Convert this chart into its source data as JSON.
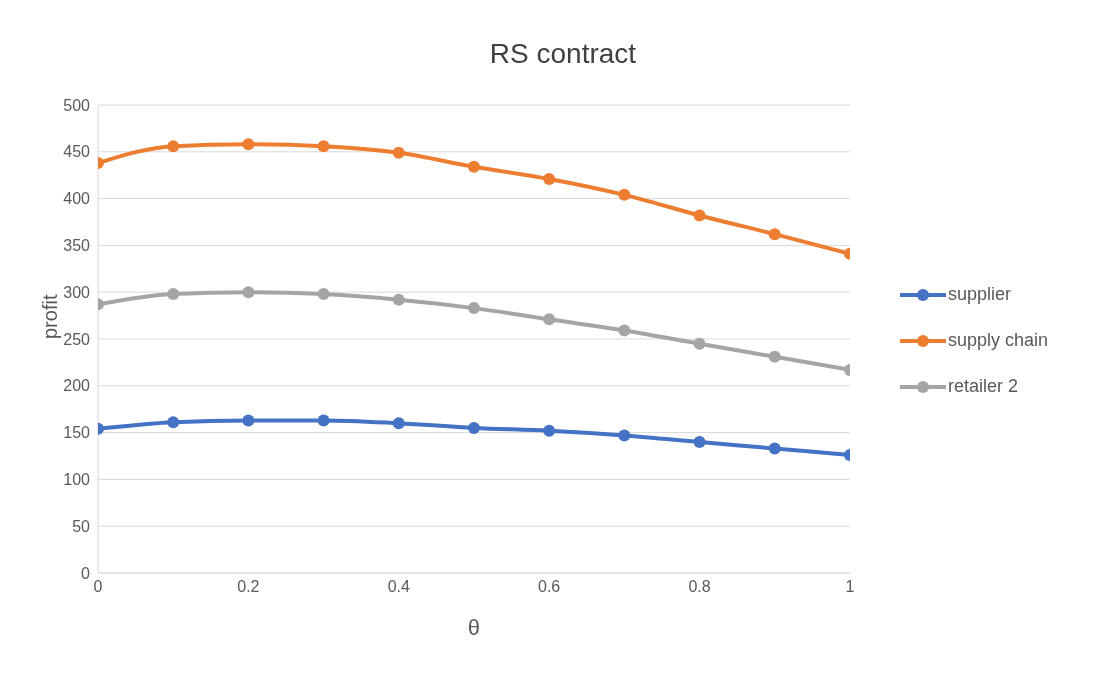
{
  "chart_data": {
    "type": "line",
    "title": "RS contract",
    "xlabel": "θ",
    "ylabel": "profit",
    "x": [
      0,
      0.1,
      0.2,
      0.3,
      0.4,
      0.5,
      0.6,
      0.7,
      0.8,
      0.9,
      1
    ],
    "series": [
      {
        "name": "supplier",
        "color": "#4472c4",
        "values": [
          154,
          161,
          163,
          163,
          160,
          155,
          152,
          147,
          140,
          133,
          126
        ]
      },
      {
        "name": "supply chain",
        "color": "#ed7d31",
        "values": [
          438,
          456,
          458,
          456,
          449,
          434,
          421,
          404,
          382,
          362,
          341
        ]
      },
      {
        "name": "retailer 2",
        "color": "#a5a5a5",
        "values": [
          287,
          298,
          300,
          298,
          292,
          283,
          271,
          259,
          245,
          231,
          217
        ]
      }
    ],
    "xlim": [
      0,
      1
    ],
    "xticks": [
      0,
      0.2,
      0.4,
      0.6,
      0.8,
      1
    ],
    "ylim": [
      0,
      500
    ],
    "yticks": [
      0,
      50,
      100,
      150,
      200,
      250,
      300,
      350,
      400,
      450,
      500
    ],
    "grid": "y",
    "legend": "right",
    "marker": "circle",
    "line_style": "solid"
  }
}
